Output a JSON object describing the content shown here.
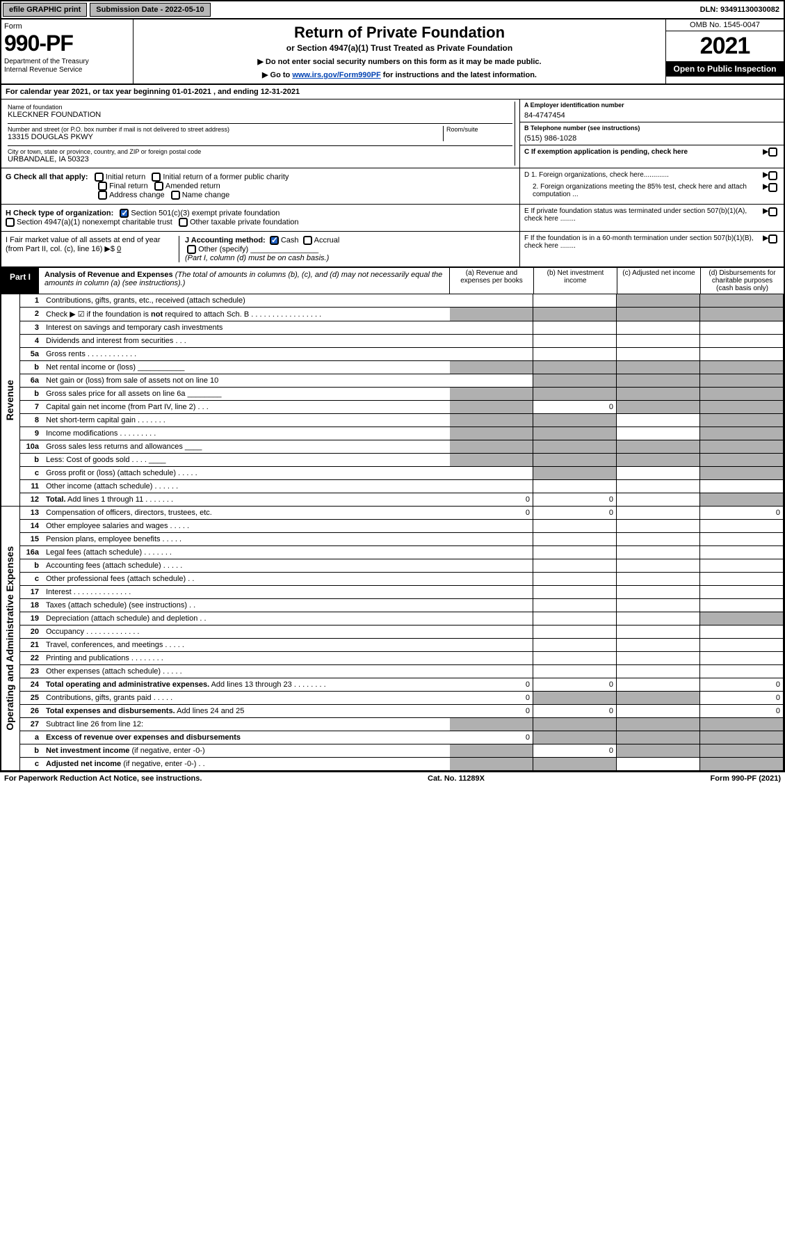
{
  "topbar": {
    "efile": "efile GRAPHIC print",
    "submission": "Submission Date - 2022-05-10",
    "dln": "DLN: 93491130030082"
  },
  "header": {
    "form_label": "Form",
    "form_no": "990-PF",
    "dept": "Department of the Treasury\nInternal Revenue Service",
    "title": "Return of Private Foundation",
    "subtitle": "or Section 4947(a)(1) Trust Treated as Private Foundation",
    "instr1": "▶ Do not enter social security numbers on this form as it may be made public.",
    "instr2_pre": "▶ Go to ",
    "instr2_link": "www.irs.gov/Form990PF",
    "instr2_post": " for instructions and the latest information.",
    "omb": "OMB No. 1545-0047",
    "year": "2021",
    "open": "Open to Public Inspection"
  },
  "calyear": "For calendar year 2021, or tax year beginning 01-01-2021           , and ending 12-31-2021",
  "name_label": "Name of foundation",
  "name": "KLECKNER FOUNDATION",
  "addr_label": "Number and street (or P.O. box number if mail is not delivered to street address)",
  "addr": "13315 DOUGLAS PKWY",
  "room_label": "Room/suite",
  "city_label": "City or town, state or province, country, and ZIP or foreign postal code",
  "city": "URBANDALE, IA  50323",
  "ein_label": "A Employer identification number",
  "ein": "84-4747454",
  "phone_label": "B Telephone number (see instructions)",
  "phone": "(515) 986-1028",
  "c_label": "C If exemption application is pending, check here",
  "g_label": "G Check all that apply:",
  "g_opts": {
    "a": "Initial return",
    "b": "Initial return of a former public charity",
    "c": "Final return",
    "d": "Amended return",
    "e": "Address change",
    "f": "Name change"
  },
  "d1": "D 1. Foreign organizations, check here.............",
  "d2": "2. Foreign organizations meeting the 85% test, check here and attach computation ...",
  "h_label": "H Check type of organization:",
  "h1": "Section 501(c)(3) exempt private foundation",
  "h2": "Section 4947(a)(1) nonexempt charitable trust",
  "h3": "Other taxable private foundation",
  "e_label": "E  If private foundation status was terminated under section 507(b)(1)(A), check here ........",
  "i_label": "I Fair market value of all assets at end of year (from Part II, col. (c), line 16) ▶$",
  "i_val": "0",
  "j_label": "J Accounting method:",
  "j1": "Cash",
  "j2": "Accrual",
  "j3": "Other (specify)",
  "j_note": "(Part I, column (d) must be on cash basis.)",
  "f_label": "F  If the foundation is in a 60-month termination under section 507(b)(1)(B), check here ........",
  "part1": {
    "tag": "Part I",
    "title": "Analysis of Revenue and Expenses",
    "sub": " (The total of amounts in columns (b), (c), and (d) may not necessarily equal the amounts in column (a) (see instructions).)",
    "col_a": "(a)  Revenue and expenses per books",
    "col_b": "(b)  Net investment income",
    "col_c": "(c)  Adjusted net income",
    "col_d": "(d)  Disbursements for charitable purposes (cash basis only)"
  },
  "side_rev": "Revenue",
  "side_exp": "Operating and Administrative Expenses",
  "rows": [
    {
      "n": "1",
      "d": "Contributions, gifts, grants, etc., received (attach schedule)",
      "g": [
        "",
        "",
        "d",
        "d"
      ]
    },
    {
      "n": "2",
      "d": "Check ▶ ☑ if the foundation is <b>not</b> required to attach Sch. B   . . . . . . . . . . . . . . . . .",
      "g": [
        "d",
        "d",
        "d",
        "d"
      ]
    },
    {
      "n": "3",
      "d": "Interest on savings and temporary cash investments",
      "g": [
        "",
        "",
        "",
        ""
      ]
    },
    {
      "n": "4",
      "d": "Dividends and interest from securities   . . .",
      "g": [
        "",
        "",
        "",
        ""
      ]
    },
    {
      "n": "5a",
      "d": "Gross rents   . . . . . . . . . . . .",
      "g": [
        "",
        "",
        "",
        ""
      ]
    },
    {
      "n": "b",
      "d": "Net rental income or (loss) ___________",
      "g": [
        "d",
        "d",
        "d",
        "d"
      ]
    },
    {
      "n": "6a",
      "d": "Net gain or (loss) from sale of assets not on line 10",
      "g": [
        "",
        "d",
        "d",
        "d"
      ]
    },
    {
      "n": "b",
      "d": "Gross sales price for all assets on line 6a ________",
      "g": [
        "d",
        "d",
        "d",
        "d"
      ]
    },
    {
      "n": "7",
      "d": "Capital gain net income (from Part IV, line 2)   . . .",
      "g": [
        "d",
        "",
        "d",
        "d"
      ],
      "vals": {
        "b": "0"
      }
    },
    {
      "n": "8",
      "d": "Net short-term capital gain   . . . . . . .",
      "g": [
        "d",
        "d",
        "",
        "d"
      ]
    },
    {
      "n": "9",
      "d": "Income modifications   . . . . . . . . .",
      "g": [
        "d",
        "d",
        "",
        "d"
      ]
    },
    {
      "n": "10a",
      "d": "Gross sales less returns and allowances  ____",
      "g": [
        "d",
        "d",
        "d",
        "d"
      ]
    },
    {
      "n": "b",
      "d": "Less: Cost of goods sold   . . . .  ____",
      "g": [
        "d",
        "d",
        "d",
        "d"
      ]
    },
    {
      "n": "c",
      "d": "Gross profit or (loss) (attach schedule)   . . . . .",
      "g": [
        "",
        "d",
        "",
        "d"
      ]
    },
    {
      "n": "11",
      "d": "Other income (attach schedule)   . . . . . .",
      "g": [
        "",
        "",
        "",
        ""
      ]
    },
    {
      "n": "12",
      "d": "<b>Total.</b> Add lines 1 through 11   . . . . . . .",
      "g": [
        "",
        "",
        "",
        "d"
      ],
      "vals": {
        "a": "0",
        "b": "0"
      }
    },
    {
      "n": "13",
      "d": "Compensation of officers, directors, trustees, etc.",
      "g": [
        "",
        "",
        "",
        ""
      ],
      "vals": {
        "a": "0",
        "b": "0",
        "d": "0"
      }
    },
    {
      "n": "14",
      "d": "Other employee salaries and wages   . . . . .",
      "g": [
        "",
        "",
        "",
        ""
      ]
    },
    {
      "n": "15",
      "d": "Pension plans, employee benefits   . . . . .",
      "g": [
        "",
        "",
        "",
        ""
      ]
    },
    {
      "n": "16a",
      "d": "Legal fees (attach schedule)   . . . . . . .",
      "g": [
        "",
        "",
        "",
        ""
      ]
    },
    {
      "n": "b",
      "d": "Accounting fees (attach schedule)   . . . . .",
      "g": [
        "",
        "",
        "",
        ""
      ]
    },
    {
      "n": "c",
      "d": "Other professional fees (attach schedule)   . .",
      "g": [
        "",
        "",
        "",
        ""
      ]
    },
    {
      "n": "17",
      "d": "Interest   . . . . . . . . . . . . . .",
      "g": [
        "",
        "",
        "",
        ""
      ]
    },
    {
      "n": "18",
      "d": "Taxes (attach schedule) (see instructions)   . .",
      "g": [
        "",
        "",
        "",
        ""
      ]
    },
    {
      "n": "19",
      "d": "Depreciation (attach schedule) and depletion   . .",
      "g": [
        "",
        "",
        "",
        "d"
      ]
    },
    {
      "n": "20",
      "d": "Occupancy   . . . . . . . . . . . . .",
      "g": [
        "",
        "",
        "",
        ""
      ]
    },
    {
      "n": "21",
      "d": "Travel, conferences, and meetings   . . . . .",
      "g": [
        "",
        "",
        "",
        ""
      ]
    },
    {
      "n": "22",
      "d": "Printing and publications   . . . . . . . .",
      "g": [
        "",
        "",
        "",
        ""
      ]
    },
    {
      "n": "23",
      "d": "Other expenses (attach schedule)   . . . . .",
      "g": [
        "",
        "",
        "",
        ""
      ]
    },
    {
      "n": "24",
      "d": "<b>Total operating and administrative expenses.</b> Add lines 13 through 23   . . . . . . . .",
      "g": [
        "",
        "",
        "",
        ""
      ],
      "vals": {
        "a": "0",
        "b": "0",
        "d": "0"
      }
    },
    {
      "n": "25",
      "d": "Contributions, gifts, grants paid   . . . . .",
      "g": [
        "",
        "d",
        "d",
        ""
      ],
      "vals": {
        "a": "0",
        "d": "0"
      }
    },
    {
      "n": "26",
      "d": "<b>Total expenses and disbursements.</b> Add lines 24 and 25",
      "g": [
        "",
        "",
        "",
        ""
      ],
      "vals": {
        "a": "0",
        "b": "0",
        "d": "0"
      }
    },
    {
      "n": "27",
      "d": "Subtract line 26 from line 12:",
      "g": [
        "d",
        "d",
        "d",
        "d"
      ]
    },
    {
      "n": "a",
      "d": "<b>Excess of revenue over expenses and disbursements</b>",
      "g": [
        "",
        "d",
        "d",
        "d"
      ],
      "vals": {
        "a": "0"
      }
    },
    {
      "n": "b",
      "d": "<b>Net investment income</b> (if negative, enter -0-)",
      "g": [
        "d",
        "",
        "d",
        "d"
      ],
      "vals": {
        "b": "0"
      }
    },
    {
      "n": "c",
      "d": "<b>Adjusted net income</b> (if negative, enter -0-)   . .",
      "g": [
        "d",
        "d",
        "",
        "d"
      ]
    }
  ],
  "footer": {
    "left": "For Paperwork Reduction Act Notice, see instructions.",
    "mid": "Cat. No. 11289X",
    "right": "Form 990-PF (2021)"
  }
}
